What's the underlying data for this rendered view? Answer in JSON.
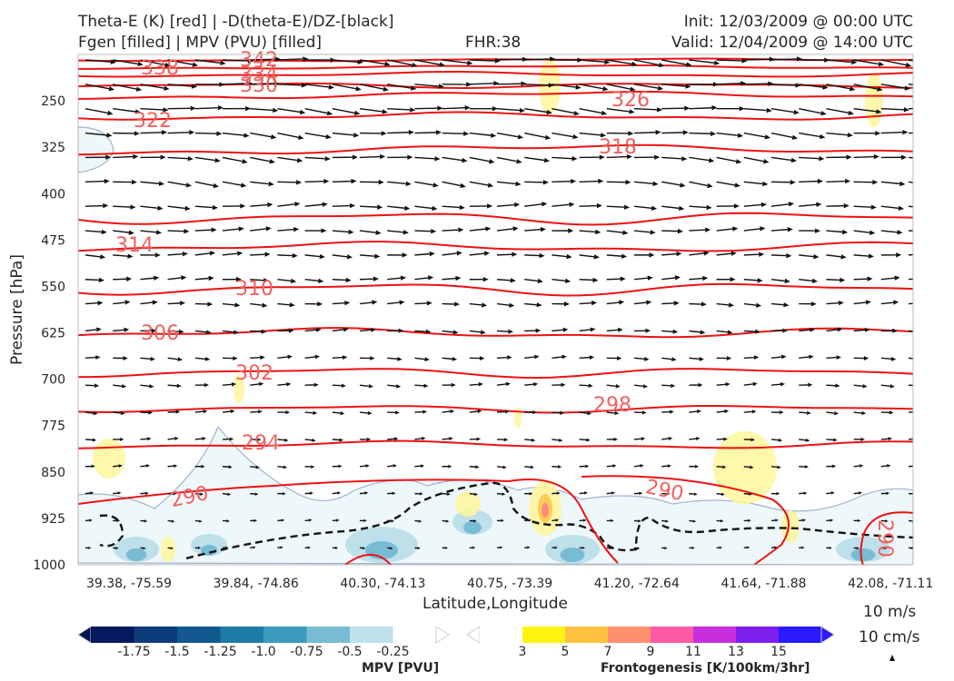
{
  "header": {
    "title_line1": "Theta-E (K) [red] | -D(theta-E)/DZ-[black]",
    "title_line2": "Fgen [filled] | MPV (PVU) [filled]",
    "fhr": "FHR:38",
    "init": "Init: 12/03/2009 @ 00:00 UTC",
    "valid": "Valid: 12/04/2009 @ 14:00 UTC"
  },
  "chart_data": {
    "type": "cross-section",
    "xlabel": "Latitude,Longitude",
    "ylabel": "Pressure [hPa]",
    "y_axis": {
      "scale": "linear",
      "inverted": true,
      "range": [
        1000,
        175
      ],
      "ticks": [
        "250",
        "325",
        "400",
        "475",
        "550",
        "625",
        "700",
        "775",
        "850",
        "925",
        "1000"
      ]
    },
    "x_ticks": [
      "39.38, -75.59",
      "39.84, -74.86",
      "40.30, -74.13",
      "40.75, -73.39",
      "41.20, -72.64",
      "41.64, -71.88",
      "42.08, -71.11"
    ],
    "theta_e_contours": {
      "color": "#ee1111",
      "labels": [
        "342",
        "338",
        "334",
        "330",
        "326",
        "322",
        "318",
        "314",
        "310",
        "306",
        "302",
        "298",
        "294",
        "290",
        "290",
        "290"
      ]
    },
    "mpv_colorbar": {
      "label": "MPV [PVU]",
      "ticks": [
        "-1.75",
        "-1.5",
        "-1.25",
        "-1.0",
        "-0.75",
        "-0.5",
        "-0.25"
      ],
      "colors": [
        "#061a5e",
        "#0d3c7a",
        "#12588f",
        "#1d7ca5",
        "#3c9bbd",
        "#78bcd4",
        "#bde0ea",
        "#ffffff"
      ]
    },
    "fgen_colorbar": {
      "label": "Frontogenesis [K/100km/3hr]",
      "ticks": [
        "3",
        "5",
        "7",
        "9",
        "11",
        "13",
        "15"
      ],
      "colors": [
        "#ffffff",
        "#fff314",
        "#ffc23f",
        "#ff8f6e",
        "#ff5aa4",
        "#c82fdc",
        "#7e1ff0",
        "#2a1aff"
      ]
    },
    "wind_reference": {
      "label1": "10 m/s",
      "label2": "10 cm/s"
    }
  }
}
